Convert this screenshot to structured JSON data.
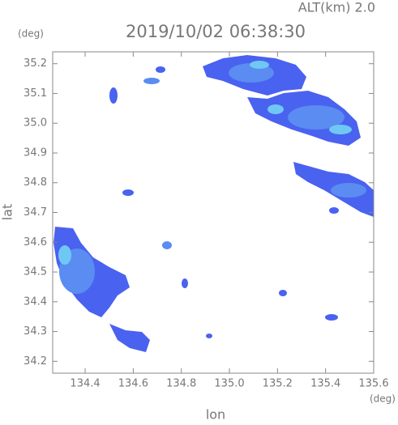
{
  "chart_data": {
    "type": "map",
    "title": "2019/10/02 06:38:30",
    "subtitle": "ALT(km) 2.0",
    "x_label": "lon",
    "y_label": "lat",
    "x_unit": "(deg)",
    "y_unit": "(deg)",
    "xlim": [
      134.265,
      135.6
    ],
    "ylim": [
      34.16,
      35.24
    ],
    "xticks": [
      134.4,
      134.6,
      134.8,
      {
        "value": 135,
        "label": "135.0"
      },
      135.2,
      135.4,
      135.6
    ],
    "yticks": [
      34.2,
      34.3,
      34.4,
      34.5,
      34.6,
      34.7,
      34.8,
      34.9,
      {
        "value": 35,
        "label": "35.0"
      },
      35.1,
      35.2
    ]
  }
}
